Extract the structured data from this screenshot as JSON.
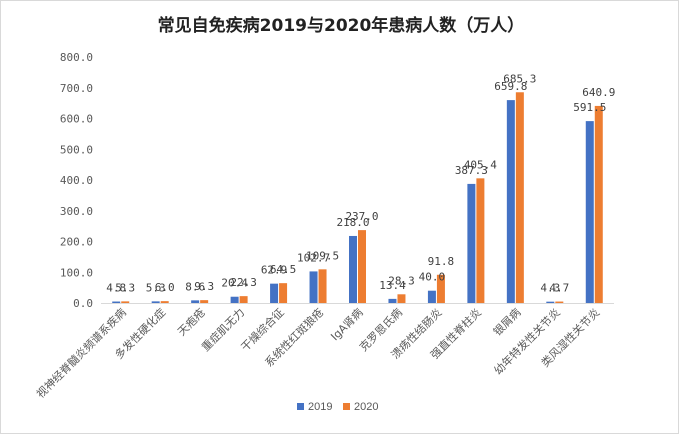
{
  "chart_data": {
    "type": "bar",
    "title": "常见自免疾病2019与2020年患病人数（万人）",
    "categories": [
      "视神经脊髓炎频谱系疾病",
      "多发性硬化症",
      "天疱疮",
      "重症肌无力",
      "干燥综合征",
      "系统性红斑狼疮",
      "IgA肾病",
      "克罗恩氏病",
      "溃疡性结肠炎",
      "强直性脊柱炎",
      "银屑病",
      "幼年特发性关节炎",
      "类风湿性关节炎"
    ],
    "series": [
      {
        "name": "2019",
        "color": "#4472C4",
        "values": [
          4.8,
          5.3,
          8.6,
          20.4,
          62.9,
          102.7,
          218.0,
          13.4,
          40.0,
          387.3,
          659.8,
          4.3,
          591.5
        ],
        "labels": [
          "4.8",
          "5.3",
          "8.6",
          "20.4",
          "62.9",
          "102.7",
          "218.0",
          "13.4",
          "40.0",
          "387.3",
          "659.8",
          "4.3",
          "591.5"
        ]
      },
      {
        "name": "2020",
        "color": "#ED7D31",
        "values": [
          5.3,
          6.0,
          9.3,
          22.3,
          64.5,
          109.5,
          237.0,
          28.3,
          91.8,
          405.4,
          685.3,
          4.7,
          640.9
        ],
        "labels": [
          "5.3",
          "6.0",
          "9.3",
          "22.3",
          "64.5",
          "109.5",
          "237.0",
          "28.3",
          "91.8",
          "405.4",
          "685.3",
          "4.7",
          "640.9"
        ]
      }
    ],
    "ylim": [
      0,
      800
    ],
    "yticks": [
      "0.0",
      "100.0",
      "200.0",
      "300.0",
      "400.0",
      "500.0",
      "600.0",
      "700.0",
      "800.0"
    ],
    "grid": false,
    "legend": "bottom"
  }
}
